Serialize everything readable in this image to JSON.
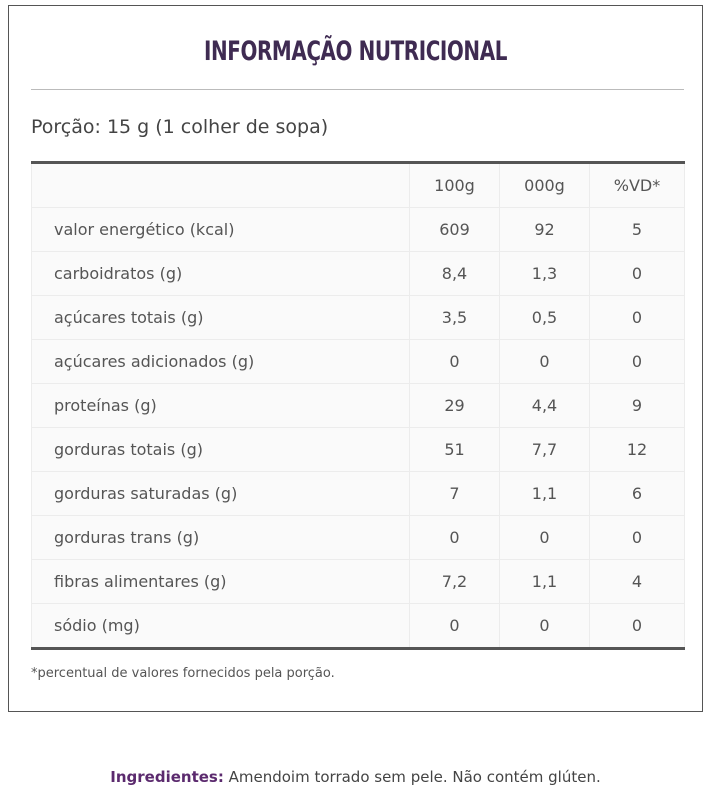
{
  "header": {
    "title": "INFORMAÇÃO NUTRICIONAL",
    "serving": "Porção: 15 g (1 colher de sopa)"
  },
  "table": {
    "columns": [
      "100g",
      "000g",
      "%VD*"
    ],
    "rows": [
      [
        "valor energético (kcal)",
        "609",
        "92",
        "5"
      ],
      [
        "carboidratos (g)",
        "8,4",
        "1,3",
        "0"
      ],
      [
        "açúcares totais (g)",
        "3,5",
        "0,5",
        "0"
      ],
      [
        "açúcares adicionados (g)",
        "0",
        "0",
        "0"
      ],
      [
        "proteínas (g)",
        "29",
        "4,4",
        "9"
      ],
      [
        "gorduras totais (g)",
        "51",
        "7,7",
        "12"
      ],
      [
        "gorduras saturadas (g)",
        "7",
        "1,1",
        "6"
      ],
      [
        "gorduras trans (g)",
        "0",
        "0",
        "0"
      ],
      [
        "fibras alimentares (g)",
        "7,2",
        "1,1",
        "4"
      ],
      [
        "sódio (mg)",
        "0",
        "0",
        "0"
      ]
    ]
  },
  "footnote": "*percentual de valores fornecidos pela porção.",
  "ingredients": {
    "label": "Ingredientes:",
    "text": "Amendoim torrado sem pele. Não contém glúten."
  }
}
